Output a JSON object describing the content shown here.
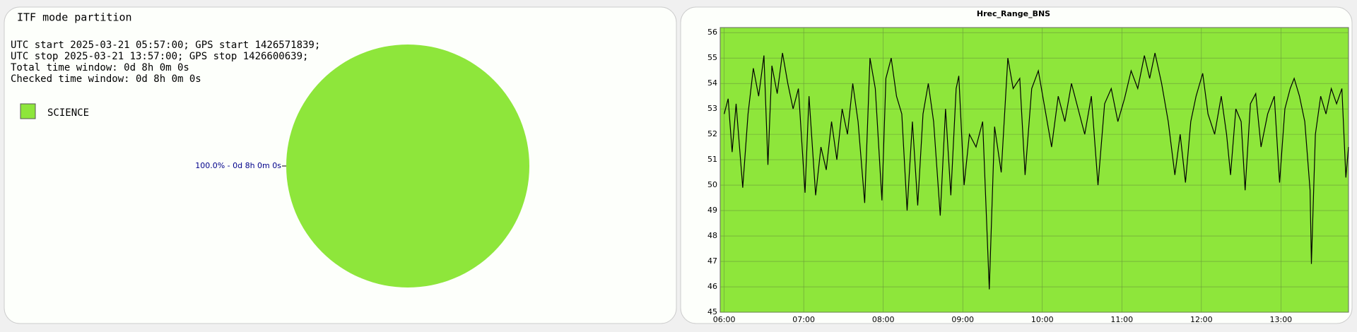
{
  "chart_data": [
    {
      "type": "pie",
      "title": "ITF mode partition",
      "info": [
        "UTC start 2025-03-21 05:57:00; GPS start 1426571839;",
        "UTC stop 2025-03-21 13:57:00; GPS stop 1426600639;",
        "Total time window: 0d 8h 0m 0s",
        "Checked time window: 0d 8h 0m 0s"
      ],
      "categories": [
        "SCIENCE"
      ],
      "values": [
        100
      ],
      "value_labels": [
        "100.0% - 0d 8h 0m 0s"
      ],
      "colors": [
        "#8ee63b"
      ],
      "legend": "top-left"
    },
    {
      "type": "line",
      "title": "Hrec_Range_BNS",
      "x": [
        "06:00",
        "06:03",
        "06:06",
        "06:09",
        "06:14",
        "06:18",
        "06:22",
        "06:26",
        "06:30",
        "06:33",
        "06:36",
        "06:40",
        "06:44",
        "06:48",
        "06:52",
        "06:56",
        "07:01",
        "07:04",
        "07:09",
        "07:13",
        "07:17",
        "07:21",
        "07:25",
        "07:29",
        "07:33",
        "07:37",
        "07:41",
        "07:46",
        "07:50",
        "07:54",
        "07:59",
        "08:02",
        "08:06",
        "08:10",
        "08:14",
        "08:18",
        "08:22",
        "08:26",
        "08:30",
        "08:34",
        "08:38",
        "08:43",
        "08:47",
        "08:51",
        "08:55",
        "08:57",
        "09:01",
        "09:05",
        "09:10",
        "09:15",
        "09:20",
        "09:24",
        "09:29",
        "09:34",
        "09:38",
        "09:43",
        "09:47",
        "09:52",
        "09:57",
        "10:02",
        "10:07",
        "10:12",
        "10:17",
        "10:22",
        "10:27",
        "10:32",
        "10:37",
        "10:42",
        "10:47",
        "10:52",
        "10:57",
        "11:02",
        "11:07",
        "11:12",
        "11:17",
        "11:21",
        "11:25",
        "11:30",
        "11:35",
        "11:40",
        "11:44",
        "11:48",
        "11:52",
        "11:56",
        "12:01",
        "12:05",
        "12:10",
        "12:15",
        "12:19",
        "12:22",
        "12:26",
        "12:30",
        "12:33",
        "12:37",
        "12:41",
        "12:45",
        "12:50",
        "12:55",
        "12:59",
        "13:03",
        "13:07",
        "13:10",
        "13:14",
        "13:18",
        "13:22",
        "13:23",
        "13:26",
        "13:30",
        "13:34",
        "13:38",
        "13:42",
        "13:46",
        "13:49",
        "13:51"
      ],
      "series": [
        {
          "name": "Hrec_Range_BNS",
          "color": "#000000",
          "values": [
            52.8,
            53.4,
            51.3,
            53.2,
            49.9,
            52.8,
            54.6,
            53.5,
            55.1,
            50.8,
            54.7,
            53.6,
            55.2,
            54.0,
            53.0,
            53.8,
            49.7,
            53.5,
            49.6,
            51.5,
            50.6,
            52.5,
            51.0,
            53.0,
            52.0,
            54.0,
            52.5,
            49.3,
            55.0,
            53.8,
            49.4,
            54.2,
            55.0,
            53.5,
            52.8,
            49.0,
            52.5,
            49.2,
            52.8,
            54.0,
            52.5,
            48.8,
            53.0,
            49.6,
            53.8,
            54.3,
            50.0,
            52.0,
            51.5,
            52.5,
            45.9,
            52.3,
            50.5,
            55.0,
            53.8,
            54.2,
            50.4,
            53.8,
            54.5,
            53.0,
            51.5,
            53.5,
            52.5,
            54.0,
            53.0,
            52.0,
            53.5,
            50.0,
            53.2,
            53.8,
            52.5,
            53.4,
            54.5,
            53.8,
            55.1,
            54.2,
            55.2,
            54.0,
            52.5,
            50.4,
            52.0,
            50.1,
            52.5,
            53.5,
            54.4,
            52.8,
            52.0,
            53.5,
            52.0,
            50.4,
            53.0,
            52.5,
            49.8,
            53.2,
            53.6,
            51.5,
            52.8,
            53.5,
            50.1,
            53.0,
            53.8,
            54.2,
            53.5,
            52.5,
            49.8,
            46.9,
            52.0,
            53.5,
            52.8,
            53.8,
            53.2,
            53.8,
            50.3,
            51.5
          ]
        }
      ],
      "background": "#8ee63b",
      "xlim": [
        "05:57",
        "13:51"
      ],
      "xticks": [
        "06:00",
        "07:00",
        "08:00",
        "09:00",
        "10:00",
        "11:00",
        "12:00",
        "13:00"
      ],
      "ylim": [
        45,
        56.2
      ],
      "yticks": [
        45,
        46,
        47,
        48,
        49,
        50,
        51,
        52,
        53,
        54,
        55,
        56
      ],
      "grid": true
    }
  ]
}
